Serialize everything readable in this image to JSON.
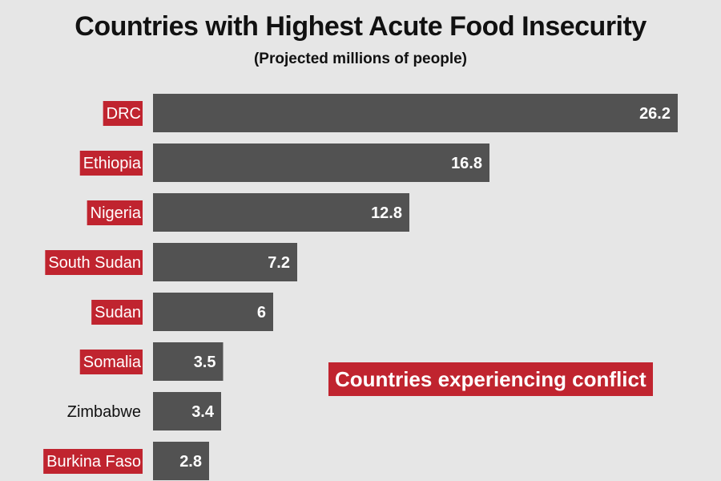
{
  "colors": {
    "background": "#e6e6e6",
    "bar": "#525252",
    "conflict_highlight": "#c0242f",
    "text": "#111111",
    "value_text": "#ffffff"
  },
  "legend": {
    "label": "Countries experiencing conflict",
    "color": "#c0242f"
  },
  "chart_data": {
    "type": "bar",
    "orientation": "horizontal",
    "title": "Countries with Highest Acute Food Insecurity",
    "subtitle": "(Projected millions of people)",
    "xlabel": "",
    "ylabel": "",
    "xlim": [
      0,
      26.2
    ],
    "grid": false,
    "legend_placement": "bottom-right",
    "categories": [
      "DRC",
      "Ethiopia",
      "Nigeria",
      "South Sudan",
      "Sudan",
      "Somalia",
      "Zimbabwe",
      "Burkina Faso"
    ],
    "values": [
      26.2,
      16.8,
      12.8,
      7.2,
      6,
      3.5,
      3.4,
      2.8
    ],
    "value_labels": [
      "26.2",
      "16.8",
      "12.8",
      "7.2",
      "6",
      "3.5",
      "3.4",
      "2.8"
    ],
    "conflict": [
      true,
      true,
      true,
      true,
      true,
      true,
      false,
      true
    ]
  }
}
